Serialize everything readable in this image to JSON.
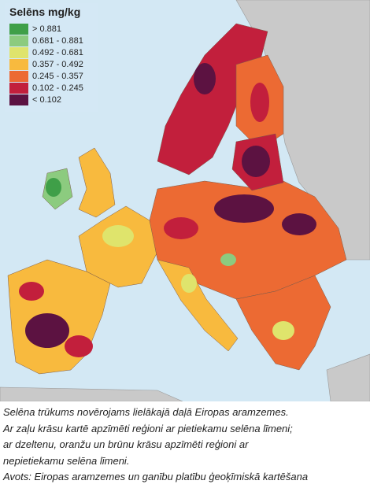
{
  "legend": {
    "title": "Selēns mg/kg",
    "items": [
      {
        "label": "> 0.881",
        "color": "#3f9f48"
      },
      {
        "label": "0.681 - 0.881",
        "color": "#8ccb7f"
      },
      {
        "label": "0.492 - 0.681",
        "color": "#dfe46c"
      },
      {
        "label": "0.357 - 0.492",
        "color": "#f8ba3e"
      },
      {
        "label": "0.245 - 0.357",
        "color": "#ec6a33"
      },
      {
        "label": "0.102 - 0.245",
        "color": "#c21f3c"
      },
      {
        "label": "< 0.102",
        "color": "#5c1241"
      }
    ]
  },
  "caption": {
    "lines": [
      "Selēna trūkums novērojams lielākajā daļā Eiropas aramzemes.",
      "Ar zaļu krāsu kartē apzīmēti reģioni ar pietiekamu selēna līmeni;",
      "ar dzeltenu, oranžu un brūnu krāsu apzīmēti reģioni ar",
      "nepietiekamu selēna līmeni.",
      "Avots: Eiropas aramzemes un ganību platību ģeoķīmiskā kartēšana"
    ]
  }
}
